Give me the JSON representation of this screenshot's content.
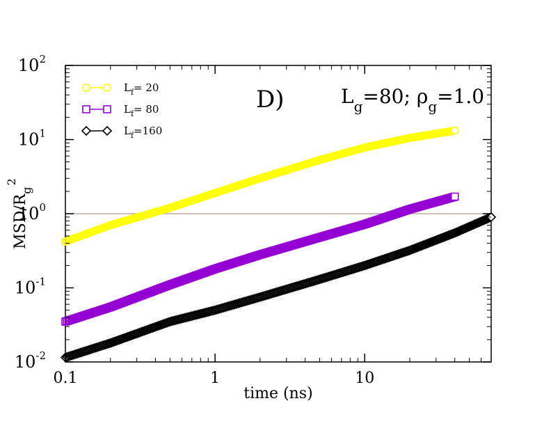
{
  "chart_data": {
    "type": "line",
    "panel_label": "D)",
    "system_label": "L_g=80; ρ_g=1.0",
    "xlabel": "time (ns)",
    "ylabel": "MSD/R_g^2",
    "xscale": "log",
    "yscale": "log",
    "xlim": [
      0.1,
      70
    ],
    "ylim": [
      0.01,
      100
    ],
    "x_ticks": [
      {
        "value": 0.1,
        "label": "0.1"
      },
      {
        "value": 1,
        "label": "1"
      },
      {
        "value": 10,
        "label": "10"
      }
    ],
    "y_ticks": [
      {
        "value": 0.01,
        "base": "10",
        "exp": "-2"
      },
      {
        "value": 0.1,
        "base": "10",
        "exp": "-1"
      },
      {
        "value": 1,
        "base": "10",
        "exp": "0"
      },
      {
        "value": 10,
        "base": "10",
        "exp": "1"
      },
      {
        "value": 100,
        "base": "10",
        "exp": "2"
      }
    ],
    "reference_line": {
      "y": 1.0,
      "color": "#b09a8e"
    },
    "legend_position": "top-left",
    "series": [
      {
        "name": "L_f= 20",
        "legend_main": "L",
        "legend_sub": "f",
        "legend_rest": "= 20",
        "color": "#ffff00",
        "marker": "circle",
        "x_range": [
          0.1,
          40
        ],
        "points": [
          [
            0.1,
            0.42
          ],
          [
            0.2,
            0.7
          ],
          [
            0.5,
            1.2
          ],
          [
            1,
            1.9
          ],
          [
            2,
            3.0
          ],
          [
            5,
            5.3
          ],
          [
            10,
            7.8
          ],
          [
            20,
            10.5
          ],
          [
            40,
            13.2
          ]
        ]
      },
      {
        "name": "L_f= 80",
        "legend_main": "L",
        "legend_sub": "f",
        "legend_rest": "= 80",
        "color": "#9400d3",
        "marker": "square",
        "x_range": [
          0.1,
          40
        ],
        "points": [
          [
            0.1,
            0.035
          ],
          [
            0.2,
            0.055
          ],
          [
            0.5,
            0.11
          ],
          [
            1,
            0.18
          ],
          [
            2,
            0.28
          ],
          [
            5,
            0.48
          ],
          [
            10,
            0.72
          ],
          [
            20,
            1.15
          ],
          [
            40,
            1.7
          ]
        ]
      },
      {
        "name": "L_f=160",
        "legend_main": "L",
        "legend_sub": "f",
        "legend_rest": "=160",
        "color": "#000000",
        "marker": "diamond",
        "x_range": [
          0.1,
          70
        ],
        "points": [
          [
            0.1,
            0.0115
          ],
          [
            0.2,
            0.018
          ],
          [
            0.5,
            0.035
          ],
          [
            1,
            0.05
          ],
          [
            2,
            0.075
          ],
          [
            5,
            0.13
          ],
          [
            10,
            0.2
          ],
          [
            20,
            0.32
          ],
          [
            40,
            0.55
          ],
          [
            70,
            0.9
          ]
        ]
      }
    ]
  }
}
